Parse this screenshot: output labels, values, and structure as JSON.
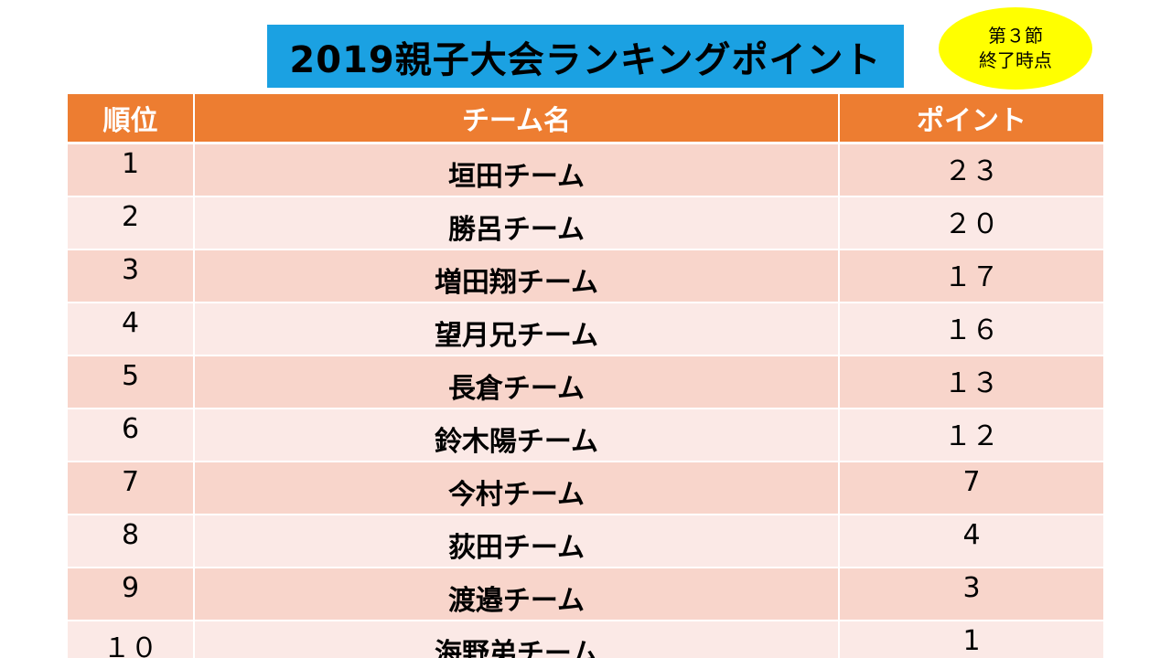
{
  "title": "2019親子大会ランキングポイント",
  "badge": {
    "line1": "第３節",
    "line2": "終了時点"
  },
  "table": {
    "headers": {
      "rank": "順位",
      "team": "チーム名",
      "points": "ポイント"
    },
    "rows": [
      {
        "rank": "1",
        "team": "垣田チーム",
        "points": "２３"
      },
      {
        "rank": "2",
        "team": "勝呂チーム",
        "points": "２０"
      },
      {
        "rank": "3",
        "team": "増田翔チーム",
        "points": "１７"
      },
      {
        "rank": "4",
        "team": "望月兄チーム",
        "points": "１６"
      },
      {
        "rank": "5",
        "team": "長倉チーム",
        "points": "１３"
      },
      {
        "rank": "6",
        "team": "鈴木陽チーム",
        "points": "１２"
      },
      {
        "rank": "7",
        "team": "今村チーム",
        "points": "7"
      },
      {
        "rank": "8",
        "team": "荻田チーム",
        "points": "4"
      },
      {
        "rank": "9",
        "team": "渡邉チーム",
        "points": "3"
      },
      {
        "rank": "１０",
        "team": "海野弟チーム",
        "points": "1"
      }
    ]
  },
  "colors": {
    "title_background": "#1ba1e2",
    "badge_background": "#ffff00",
    "header_background": "#ed7d31",
    "row_odd": "#f8d5cb",
    "row_even": "#fbe9e6"
  }
}
